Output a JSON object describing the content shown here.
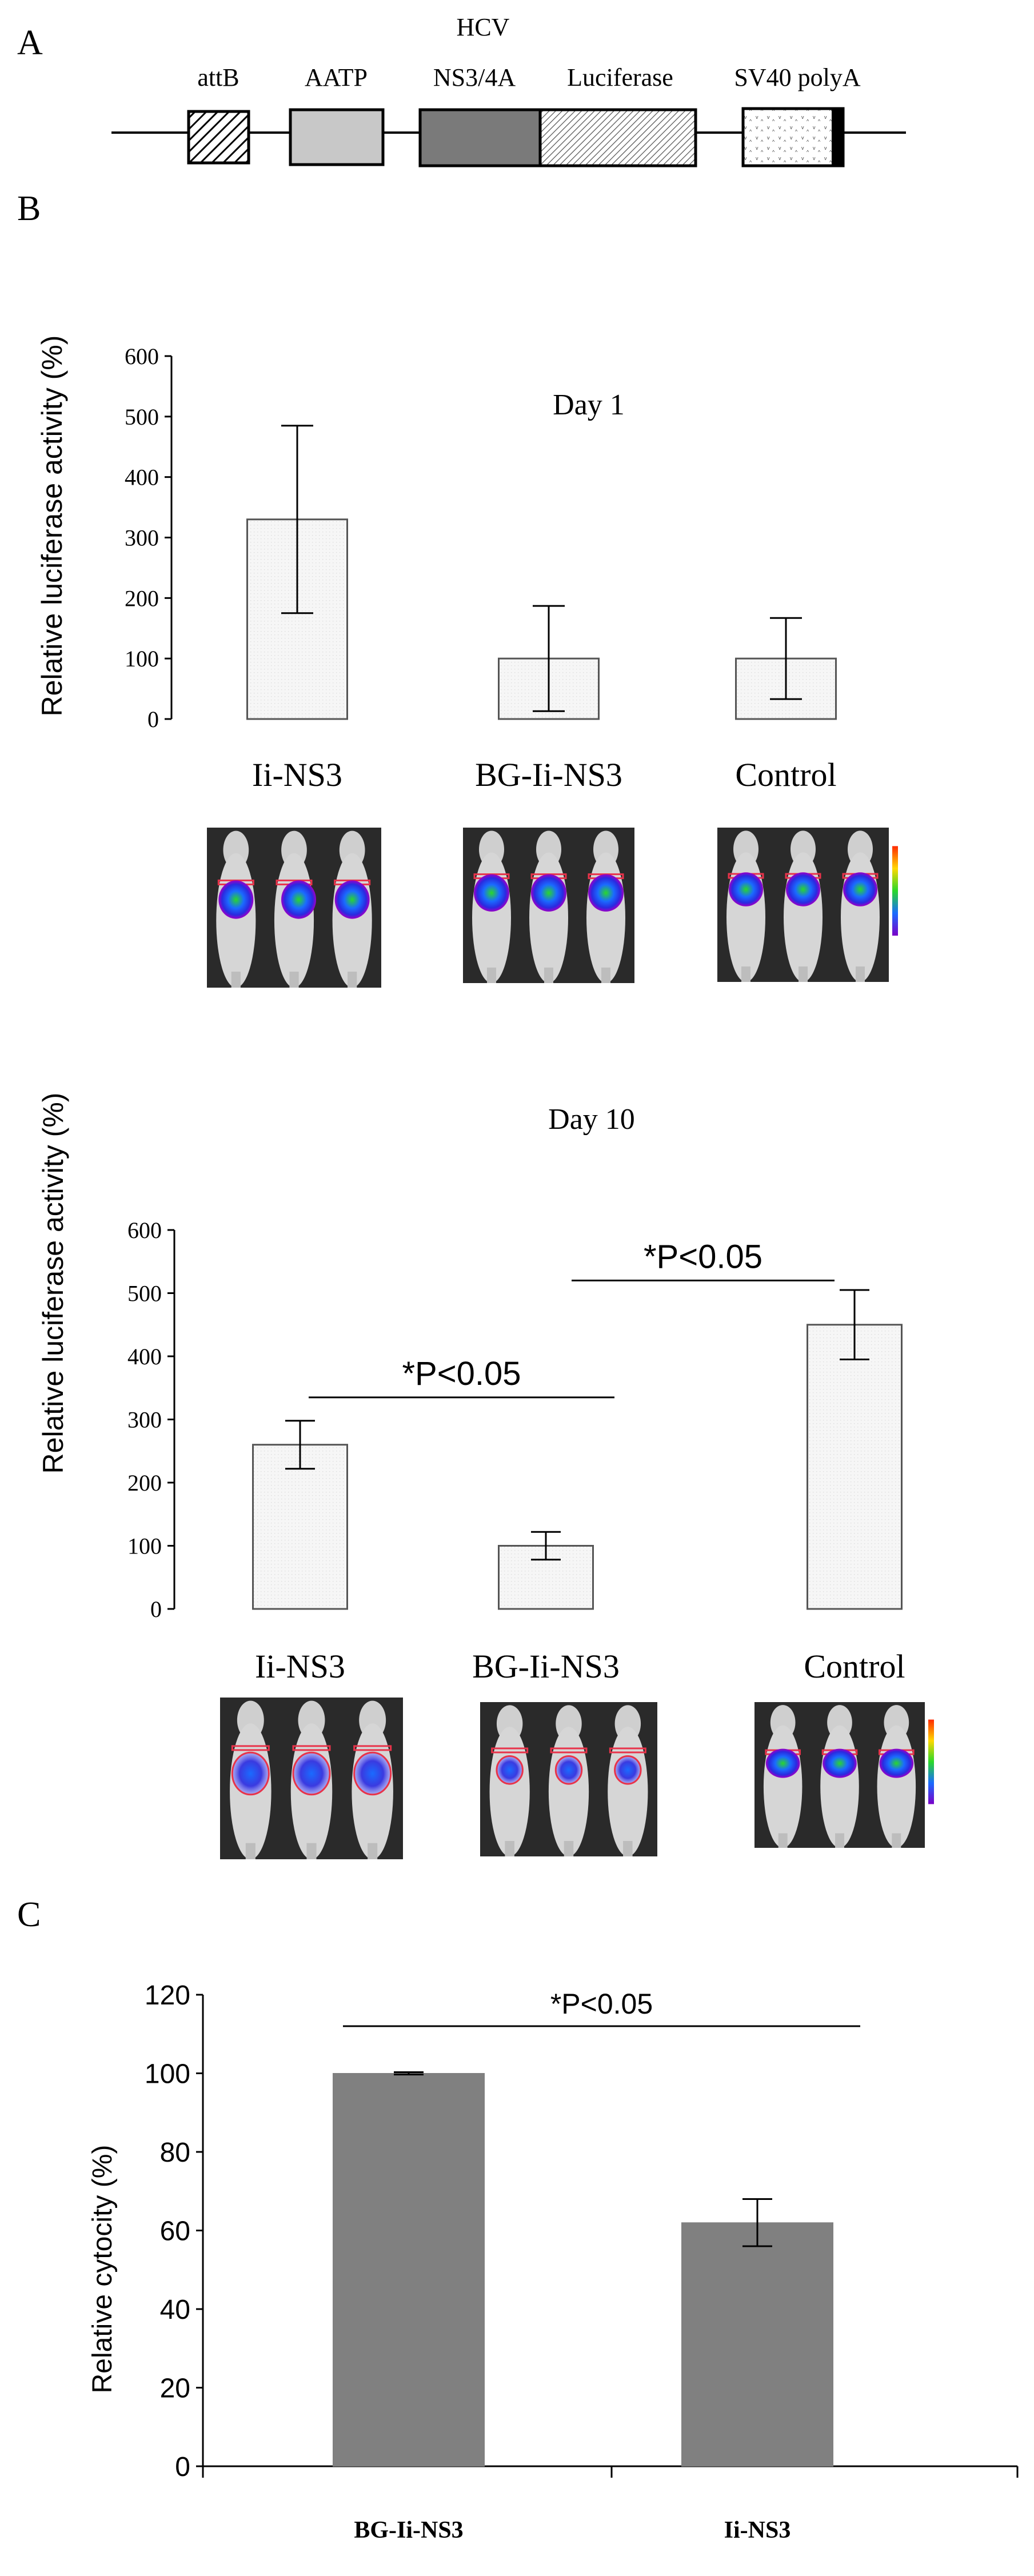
{
  "colors": {
    "bar_light": "#f4f4f4",
    "bar_dark": "#808080",
    "luc_bar": "#5e5e5e",
    "line": "#000000",
    "mouse_bg": "#2a2a2a",
    "mouse_body": "#d2d2d2",
    "roi": "#e8334a"
  },
  "panel_a": {
    "label": "A",
    "elements": [
      {
        "name": "attB",
        "label": "attB",
        "fill": "hatch"
      },
      {
        "name": "AATP",
        "label": "AATP",
        "fill": "#c8c8c8"
      },
      {
        "name": "HCV NS3/4A",
        "label": "HCV\nNS3/4A",
        "fill": "#7a7a7a"
      },
      {
        "name": "Luciferase",
        "label": "Luciferase",
        "fill": "diag"
      },
      {
        "name": "SV40 polyA",
        "label": "SV40 polyA",
        "fill": "dots"
      }
    ]
  },
  "panel_b": {
    "label": "B"
  },
  "panel_c": {
    "label": "C"
  },
  "chart_data": [
    {
      "id": "day1",
      "type": "bar",
      "title": "Day 1",
      "ylabel": "Relative luciferase activity (%)",
      "xlabel": "",
      "categories": [
        "Ii-NS3",
        "BG-Ii-NS3",
        "Control"
      ],
      "values": [
        330,
        100,
        100
      ],
      "errors": [
        155,
        87,
        67
      ],
      "ylim": [
        0,
        600
      ],
      "yticks": [
        0,
        100,
        200,
        300,
        400,
        500,
        600
      ],
      "annotations": []
    },
    {
      "id": "day10",
      "type": "bar",
      "title": "Day 10",
      "ylabel": "Relative luciferase activity (%)",
      "xlabel": "",
      "categories": [
        "Ii-NS3",
        "BG-Ii-NS3",
        "Control"
      ],
      "values": [
        260,
        100,
        450
      ],
      "errors": [
        38,
        22,
        55
      ],
      "ylim": [
        0,
        600
      ],
      "yticks": [
        0,
        100,
        200,
        300,
        400,
        500,
        600
      ],
      "annotations": [
        {
          "text": "*P<0.05",
          "between": [
            "Ii-NS3",
            "BG-Ii-NS3"
          ],
          "y": 335
        },
        {
          "text": "*P<0.05",
          "between": [
            "BG-Ii-NS3",
            "Control"
          ],
          "y": 520
        }
      ]
    },
    {
      "id": "cyto",
      "type": "bar",
      "title": "",
      "ylabel": "Relative cytocity (%)",
      "xlabel": "",
      "categories": [
        "BG-Ii-NS3",
        "Ii-NS3"
      ],
      "values": [
        100,
        62
      ],
      "errors": [
        0.3,
        6
      ],
      "ylim": [
        0,
        120
      ],
      "yticks": [
        0,
        20,
        40,
        60,
        80,
        100,
        120
      ],
      "annotations": [
        {
          "text": "*P<0.05",
          "between": [
            "BG-Ii-NS3",
            "Ii-NS3"
          ],
          "y": 112
        }
      ]
    }
  ]
}
